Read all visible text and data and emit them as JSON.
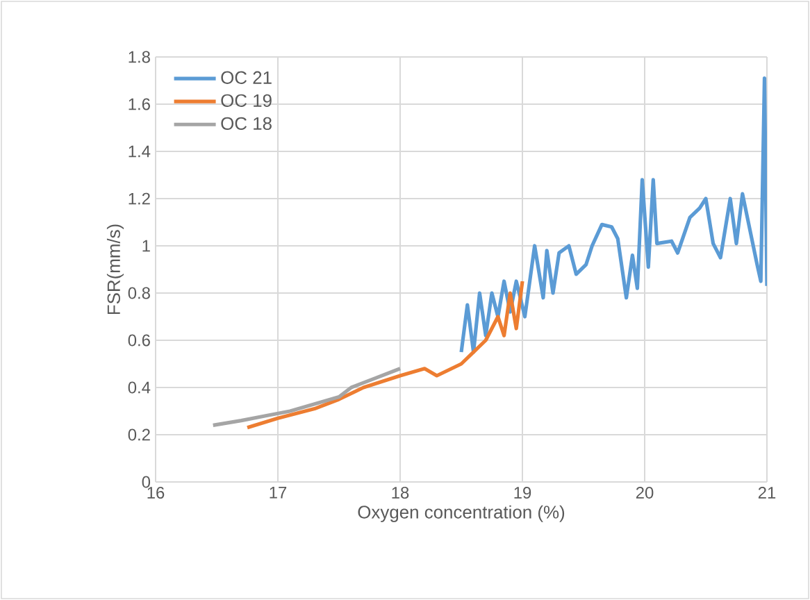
{
  "chart_data": {
    "type": "line",
    "xlabel": "Oxygen concentration (%)",
    "ylabel": "FSR(mm/s)",
    "xlim": [
      16,
      21
    ],
    "xticks": [
      16,
      17,
      18,
      19,
      20,
      21
    ],
    "ylim": [
      0,
      1.8
    ],
    "yticks": [
      0,
      0.2,
      0.4,
      0.6,
      0.8,
      1,
      1.2,
      1.4,
      1.6,
      1.8
    ],
    "grid": true,
    "legend": "top left",
    "series": [
      {
        "name": "OC 21",
        "color": "#5b9bd5",
        "x": [
          18.5,
          18.55,
          18.6,
          18.65,
          18.7,
          18.75,
          18.8,
          18.85,
          18.9,
          18.95,
          19.02,
          19.1,
          19.17,
          19.2,
          19.25,
          19.3,
          19.38,
          19.44,
          19.52,
          19.57,
          19.65,
          19.73,
          19.78,
          19.85,
          19.9,
          19.94,
          19.98,
          20.03,
          20.07,
          20.1,
          20.22,
          20.27,
          20.37,
          20.45,
          20.5,
          20.56,
          20.62,
          20.7,
          20.75,
          20.8,
          20.84,
          20.92,
          20.95,
          20.98,
          21.0
        ],
        "values": [
          0.55,
          0.75,
          0.55,
          0.8,
          0.62,
          0.8,
          0.7,
          0.85,
          0.72,
          0.85,
          0.7,
          1.0,
          0.78,
          0.98,
          0.8,
          0.97,
          1.0,
          0.88,
          0.92,
          1.0,
          1.09,
          1.08,
          1.03,
          0.78,
          0.96,
          0.82,
          1.28,
          0.91,
          1.28,
          1.01,
          1.02,
          0.97,
          1.12,
          1.16,
          1.2,
          1.01,
          0.95,
          1.2,
          1.01,
          1.22,
          1.12,
          0.92,
          0.85,
          1.71,
          0.83
        ]
      },
      {
        "name": "OC 19",
        "color": "#ed7d31",
        "x": [
          16.75,
          17.0,
          17.3,
          17.5,
          17.7,
          18.0,
          18.2,
          18.3,
          18.5,
          18.6,
          18.7,
          18.8,
          18.85,
          18.9,
          18.95,
          19.0
        ],
        "values": [
          0.23,
          0.27,
          0.31,
          0.35,
          0.4,
          0.45,
          0.48,
          0.45,
          0.5,
          0.55,
          0.6,
          0.7,
          0.62,
          0.8,
          0.65,
          0.85
        ]
      },
      {
        "name": "OC 18",
        "color": "#a5a5a5",
        "x": [
          16.47,
          16.7,
          16.9,
          17.1,
          17.3,
          17.5,
          17.6,
          17.8,
          18.0
        ],
        "values": [
          0.24,
          0.26,
          0.28,
          0.3,
          0.33,
          0.36,
          0.4,
          0.44,
          0.48
        ]
      }
    ]
  }
}
